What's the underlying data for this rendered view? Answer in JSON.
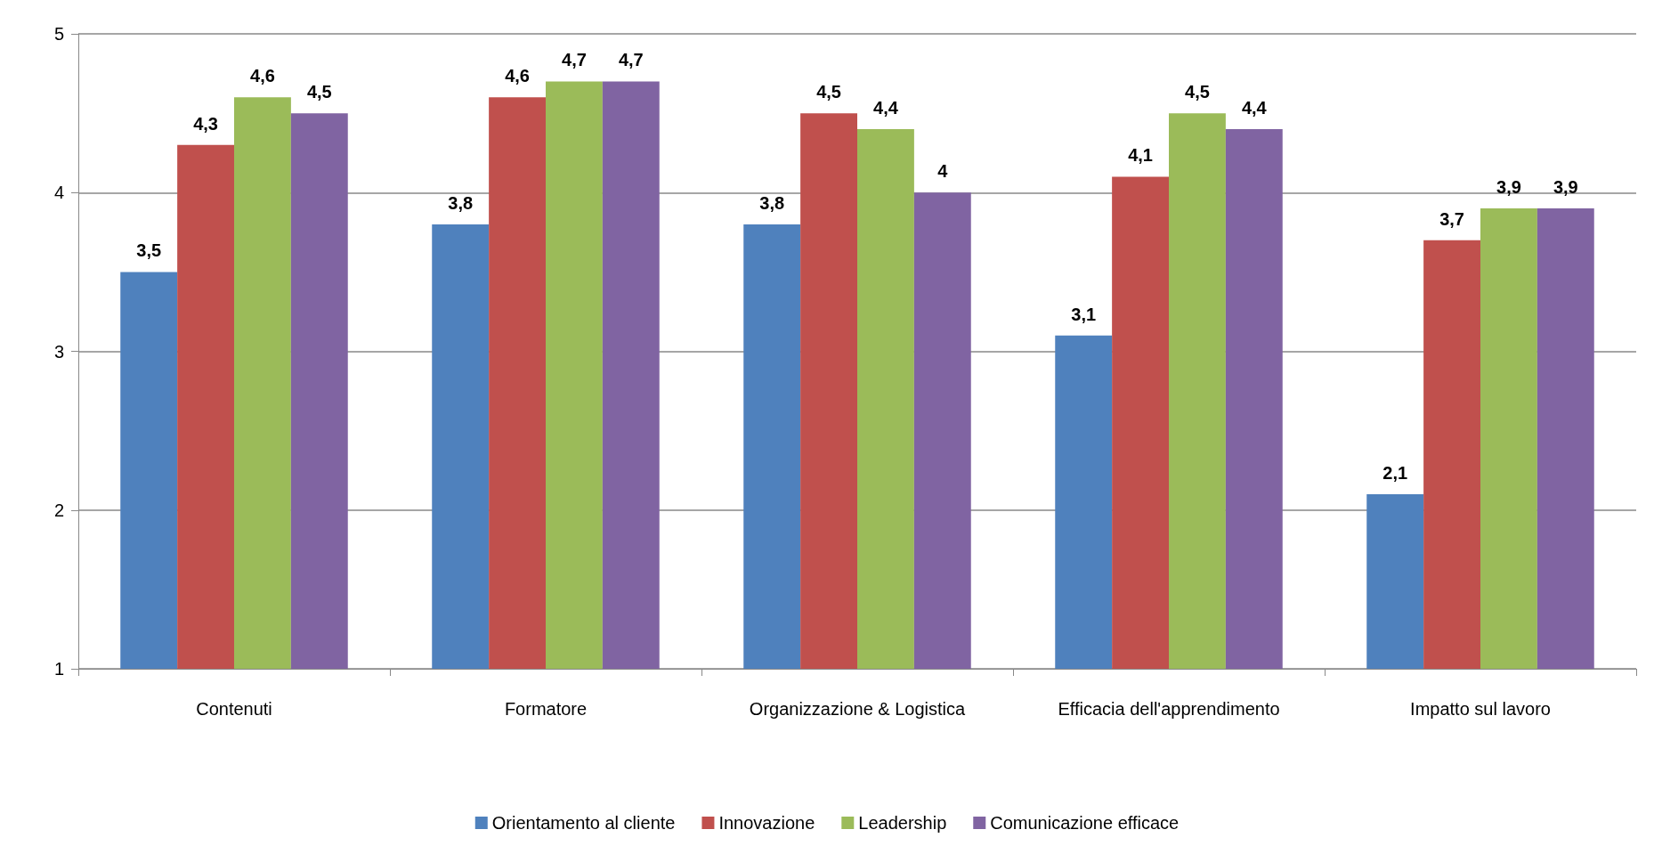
{
  "chart_data": {
    "type": "bar",
    "categories": [
      "Contenuti",
      "Formatore",
      "Organizzazione & Logistica",
      "Efficacia dell'apprendimento",
      "Impatto sul lavoro"
    ],
    "series": [
      {
        "name": "Orientamento al cliente",
        "color": "#4f81bd",
        "values": [
          3.5,
          3.8,
          3.8,
          3.1,
          2.1
        ],
        "value_labels": [
          "3,5",
          "3,8",
          "3,8",
          "3,1",
          "2,1"
        ]
      },
      {
        "name": "Innovazione",
        "color": "#c0504d",
        "values": [
          4.3,
          4.6,
          4.5,
          4.1,
          3.7
        ],
        "value_labels": [
          "4,3",
          "4,6",
          "4,5",
          "4,1",
          "3,7"
        ]
      },
      {
        "name": "Leadership",
        "color": "#9bbb59",
        "values": [
          4.6,
          4.7,
          4.4,
          4.5,
          3.9
        ],
        "value_labels": [
          "4,6",
          "4,7",
          "4,4",
          "4,5",
          "3,9"
        ]
      },
      {
        "name": "Comunicazione efficace",
        "color": "#8064a2",
        "values": [
          4.5,
          4.7,
          4,
          4.4,
          3.9
        ],
        "value_labels": [
          "4,5",
          "4,7",
          "4",
          "4,4",
          "3,9"
        ]
      }
    ],
    "ylim": [
      1,
      5
    ],
    "yticks": [
      1,
      2,
      3,
      4,
      5
    ],
    "grid": "y",
    "legend": "bottom"
  }
}
